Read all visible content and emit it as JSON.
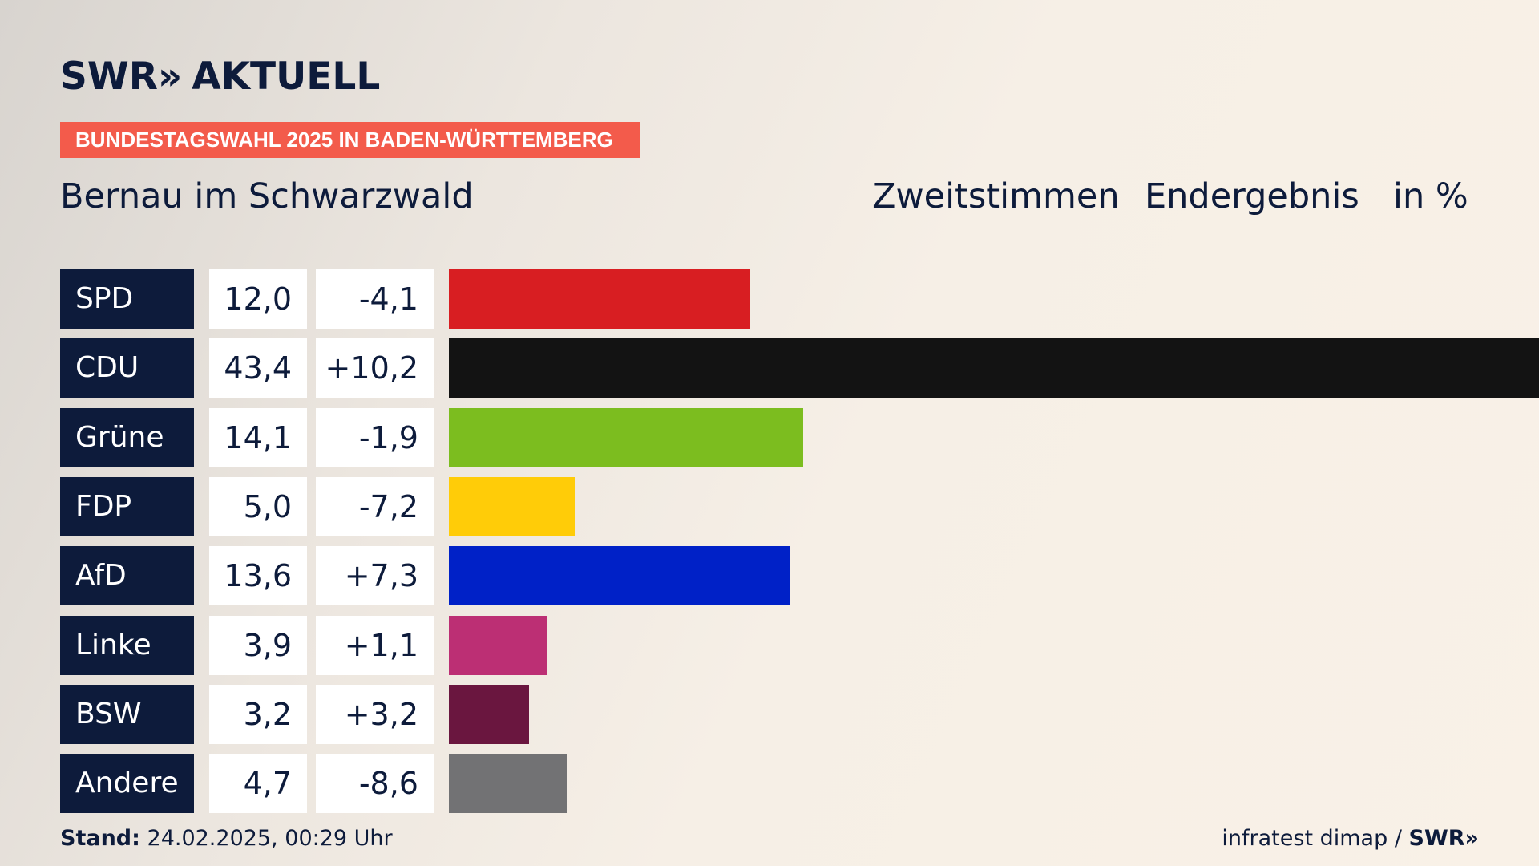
{
  "header": {
    "logo_primary": "SWR",
    "logo_chevrons": "»",
    "logo_secondary": "AKTUELL",
    "kicker": "BUNDESTAGSWAHL 2025 IN BADEN-WÜRTTEMBERG",
    "place": "Bernau im Schwarzwald",
    "vote_type": "Zweitstimmen",
    "result_type": "Endergebnis",
    "unit": "in %"
  },
  "footer": {
    "stand_label": "Stand:",
    "stand_value": "24.02.2025, 00:29 Uhr",
    "source": "infratest dimap /",
    "source_brand": "SWR»"
  },
  "chart_data": {
    "type": "bar",
    "orientation": "horizontal",
    "xlim": [
      0,
      43.4
    ],
    "categories": [
      "SPD",
      "CDU",
      "Grüne",
      "FDP",
      "AfD",
      "Linke",
      "BSW",
      "Andere"
    ],
    "values": [
      12.0,
      43.4,
      14.1,
      5.0,
      13.6,
      3.9,
      3.2,
      4.7
    ],
    "value_labels": [
      "12,0",
      "43,4",
      "14,1",
      "5,0",
      "13,6",
      "3,9",
      "3,2",
      "4,7"
    ],
    "diff_labels": [
      "-4,1",
      "+10,2",
      "-1,9",
      "-7,2",
      "+7,3",
      "+1,1",
      "+3,2",
      "-8,6"
    ],
    "colors": [
      "#d81e22",
      "#131313",
      "#7cbd1f",
      "#ffcc08",
      "#0021c7",
      "#bc2f74",
      "#6a163f",
      "#727274"
    ]
  }
}
